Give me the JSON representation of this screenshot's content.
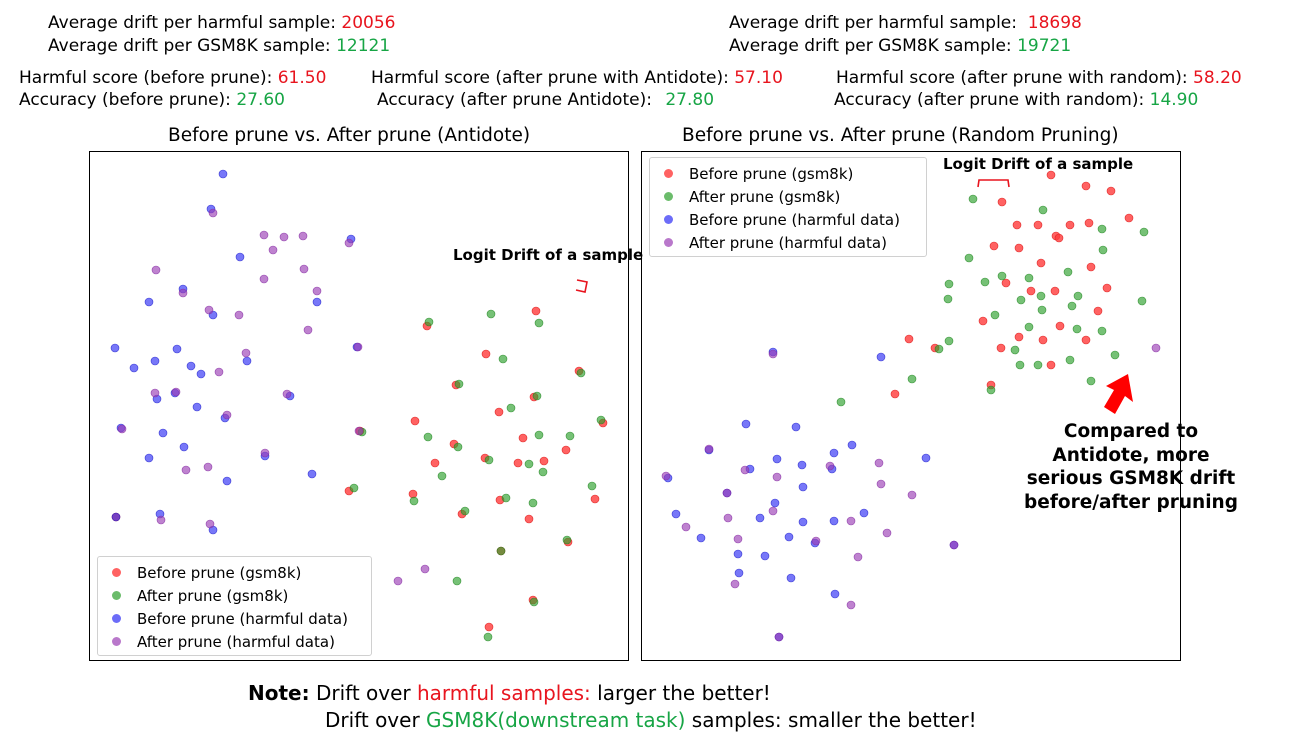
{
  "stats_left": {
    "drift_harmful_label": "Average drift per harmful sample: ",
    "drift_harmful_value": "20056",
    "drift_gsm8k_label": "Average drift per GSM8K sample: ",
    "drift_gsm8k_value": "12121"
  },
  "stats_right": {
    "drift_harmful_label": "Average drift per harmful sample:  ",
    "drift_harmful_value": "18698",
    "drift_gsm8k_label": "Average drift per GSM8K sample: ",
    "drift_gsm8k_value": "19721"
  },
  "scores": {
    "before": {
      "harmful_label": "Harmful score (before prune): ",
      "harmful_value": "61.50",
      "acc_label": "Accuracy (before prune): ",
      "acc_value": "27.60"
    },
    "antidote": {
      "harmful_label": "Harmful score (after prune with Antidote): ",
      "harmful_value": "57.10",
      "acc_label": "Accuracy (after prune Antidote): ",
      "acc_value": "27.80"
    },
    "random": {
      "harmful_label": "Harmful score (after prune with random): ",
      "harmful_value": "58.20",
      "acc_label": "Accuracy (after prune with random): ",
      "acc_value": "14.90"
    }
  },
  "colors": {
    "red": "#e8141e",
    "green": "#17a545",
    "before_gsm8k": "#ff3b3b",
    "after_gsm8k": "#2ca02c",
    "before_harmful": "#2e2ef5",
    "after_harmful": "#9b3fb5"
  },
  "legend": [
    "Before prune (gsm8k)",
    "After prune (gsm8k)",
    "Before prune (harmful data)",
    "After prune (harmful data)"
  ],
  "annotations": {
    "logit_drift": "Logit Drift of a sample",
    "compared": [
      "Compared to",
      "Antidote, more",
      "serious GSM8K drift",
      "before/after pruning"
    ]
  },
  "note": {
    "bold": "Note:",
    "line1_a": " Drift over ",
    "line1_red": "harmful samples:",
    "line1_b": " larger the better!",
    "line2_a": "Drift over ",
    "line2_green": "GSM8K(downstream task)",
    "line2_b": " samples: smaller the better!"
  },
  "chart_data": [
    {
      "type": "scatter",
      "title": "Before prune vs. After prune (Antidote)",
      "legend_position": "lower-left",
      "series": [
        {
          "name": "Before prune (gsm8k)",
          "points": [
            [
              535,
              310
            ],
            [
              426,
              325
            ],
            [
              485,
              353
            ],
            [
              578,
              370
            ],
            [
              455,
              384
            ],
            [
              533,
              396
            ],
            [
              498,
              411
            ],
            [
              414,
              420
            ],
            [
              602,
              422
            ],
            [
              359,
              430
            ],
            [
              453,
              443
            ],
            [
              522,
              437
            ],
            [
              434,
              462
            ],
            [
              484,
              457
            ],
            [
              517,
              462
            ],
            [
              543,
              460
            ],
            [
              565,
              449
            ],
            [
              348,
              490
            ],
            [
              412,
              493
            ],
            [
              499,
              499
            ],
            [
              594,
              498
            ],
            [
              461,
              513
            ],
            [
              528,
              518
            ],
            [
              567,
              541
            ],
            [
              500,
              550
            ],
            [
              532,
              599
            ],
            [
              488,
              626
            ],
            [
              115,
              516
            ]
          ]
        },
        {
          "name": "After prune (gsm8k)",
          "points": [
            [
              490,
              313
            ],
            [
              428,
              321
            ],
            [
              538,
              322
            ],
            [
              502,
              358
            ],
            [
              580,
              372
            ],
            [
              458,
              383
            ],
            [
              536,
              395
            ],
            [
              510,
              407
            ],
            [
              600,
              419
            ],
            [
              361,
              431
            ],
            [
              427,
              436
            ],
            [
              457,
              446
            ],
            [
              538,
              434
            ],
            [
              569,
              435
            ],
            [
              488,
              459
            ],
            [
              528,
              463
            ],
            [
              441,
              475
            ],
            [
              542,
              471
            ],
            [
              353,
              487
            ],
            [
              591,
              485
            ],
            [
              413,
              500
            ],
            [
              505,
              497
            ],
            [
              464,
              510
            ],
            [
              532,
              502
            ],
            [
              566,
              539
            ],
            [
              500,
              550
            ],
            [
              456,
              580
            ],
            [
              533,
              601
            ],
            [
              487,
              636
            ]
          ]
        },
        {
          "name": "Before prune (harmful data)",
          "points": [
            [
              222,
              173
            ],
            [
              210,
              208
            ],
            [
              350,
              238
            ],
            [
              239,
              256
            ],
            [
              182,
              288
            ],
            [
              148,
              301
            ],
            [
              316,
              301
            ],
            [
              212,
              314
            ],
            [
              114,
              347
            ],
            [
              154,
              360
            ],
            [
              176,
              348
            ],
            [
              190,
              365
            ],
            [
              356,
              346
            ],
            [
              133,
              367
            ],
            [
              200,
              373
            ],
            [
              246,
              360
            ],
            [
              156,
              398
            ],
            [
              174,
              392
            ],
            [
              289,
              395
            ],
            [
              196,
              406
            ],
            [
              224,
              417
            ],
            [
              120,
              427
            ],
            [
              162,
              432
            ],
            [
              183,
              446
            ],
            [
              264,
              455
            ],
            [
              148,
              457
            ],
            [
              311,
              473
            ],
            [
              226,
              480
            ],
            [
              159,
              513
            ],
            [
              212,
              529
            ],
            [
              115,
              516
            ]
          ]
        },
        {
          "name": "After prune (harmful data)",
          "points": [
            [
              212,
              212
            ],
            [
              263,
              234
            ],
            [
              283,
              236
            ],
            [
              302,
              235
            ],
            [
              348,
              242
            ],
            [
              272,
              249
            ],
            [
              155,
              269
            ],
            [
              303,
              268
            ],
            [
              263,
              278
            ],
            [
              182,
              292
            ],
            [
              316,
              290
            ],
            [
              208,
              309
            ],
            [
              238,
              314
            ],
            [
              307,
              329
            ],
            [
              245,
              352
            ],
            [
              218,
              371
            ],
            [
              357,
              346
            ],
            [
              154,
              392
            ],
            [
              286,
              393
            ],
            [
              175,
              391
            ],
            [
              226,
              414
            ],
            [
              358,
              430
            ],
            [
              121,
              428
            ],
            [
              207,
              466
            ],
            [
              264,
              452
            ],
            [
              185,
              469
            ],
            [
              160,
              519
            ],
            [
              209,
              523
            ],
            [
              424,
              568
            ],
            [
              397,
              580
            ]
          ]
        }
      ]
    },
    {
      "type": "scatter",
      "title": "Before prune vs. After prune (Random Pruning)",
      "legend_position": "upper-left",
      "series": [
        {
          "name": "Before prune (gsm8k)",
          "points": [
            [
              1001,
              201
            ],
            [
              1050,
              174
            ],
            [
              1085,
              185
            ],
            [
              1110,
              190
            ],
            [
              1128,
              217
            ],
            [
              1016,
              224
            ],
            [
              1037,
              224
            ],
            [
              1069,
              224
            ],
            [
              1088,
              222
            ],
            [
              993,
              245
            ],
            [
              1018,
              247
            ],
            [
              1055,
              235
            ],
            [
              1058,
              237
            ],
            [
              1040,
              262
            ],
            [
              1090,
              266
            ],
            [
              1005,
              282
            ],
            [
              1054,
              290
            ],
            [
              1030,
              290
            ],
            [
              1106,
              287
            ],
            [
              982,
              320
            ],
            [
              1097,
              310
            ],
            [
              1018,
              336
            ],
            [
              1059,
              325
            ],
            [
              1000,
              347
            ],
            [
              1042,
              339
            ],
            [
              1085,
              339
            ],
            [
              908,
              338
            ],
            [
              934,
              347
            ],
            [
              1050,
              364
            ],
            [
              990,
              384
            ],
            [
              894,
              393
            ]
          ]
        },
        {
          "name": "After prune (gsm8k)",
          "points": [
            [
              972,
              198
            ],
            [
              1042,
              209
            ],
            [
              1143,
              231
            ],
            [
              1101,
              228
            ],
            [
              1102,
              249
            ],
            [
              968,
              257
            ],
            [
              984,
              281
            ],
            [
              1001,
              275
            ],
            [
              1028,
              277
            ],
            [
              948,
              283
            ],
            [
              1067,
              271
            ],
            [
              1040,
              295
            ],
            [
              1077,
              295
            ],
            [
              947,
              298
            ],
            [
              1020,
              299
            ],
            [
              1041,
              309
            ],
            [
              1071,
              305
            ],
            [
              994,
              314
            ],
            [
              1028,
              326
            ],
            [
              1076,
              328
            ],
            [
              1101,
              330
            ],
            [
              1141,
              300
            ],
            [
              1014,
              349
            ],
            [
              948,
              340
            ],
            [
              1069,
              359
            ],
            [
              1037,
              364
            ],
            [
              1114,
              354
            ],
            [
              1019,
              364
            ],
            [
              911,
              378
            ],
            [
              938,
              348
            ],
            [
              840,
              401
            ],
            [
              990,
              389
            ],
            [
              1090,
              380
            ]
          ]
        },
        {
          "name": "Before prune (harmful data)",
          "points": [
            [
              880,
              356
            ],
            [
              772,
              351
            ],
            [
              745,
              423
            ],
            [
              795,
              426
            ],
            [
              708,
              449
            ],
            [
              667,
              477
            ],
            [
              851,
              444
            ],
            [
              833,
              452
            ],
            [
              749,
              468
            ],
            [
              776,
              458
            ],
            [
              801,
              464
            ],
            [
              831,
              468
            ],
            [
              925,
              457
            ],
            [
              802,
              486
            ],
            [
              726,
              492
            ],
            [
              774,
              502
            ],
            [
              802,
              521
            ],
            [
              759,
              517
            ],
            [
              675,
              513
            ],
            [
              700,
              537
            ],
            [
              833,
              520
            ],
            [
              863,
              512
            ],
            [
              788,
              536
            ],
            [
              737,
              553
            ],
            [
              764,
              555
            ],
            [
              814,
              542
            ],
            [
              953,
              544
            ],
            [
              738,
              572
            ],
            [
              834,
              593
            ],
            [
              790,
              577
            ],
            [
              778,
              636
            ]
          ]
        },
        {
          "name": "After prune (harmful data)",
          "points": [
            [
              772,
              353
            ],
            [
              1155,
              347
            ],
            [
              708,
              448
            ],
            [
              665,
              475
            ],
            [
              744,
              469
            ],
            [
              829,
              465
            ],
            [
              878,
              462
            ],
            [
              726,
              492
            ],
            [
              776,
              476
            ],
            [
              727,
              517
            ],
            [
              685,
              526
            ],
            [
              772,
              510
            ],
            [
              815,
              540
            ],
            [
              850,
              520
            ],
            [
              886,
              532
            ],
            [
              911,
              494
            ],
            [
              880,
              483
            ],
            [
              737,
              538
            ],
            [
              857,
              556
            ],
            [
              734,
              583
            ],
            [
              850,
              604
            ],
            [
              953,
              544
            ],
            [
              778,
              636
            ]
          ]
        }
      ]
    }
  ]
}
